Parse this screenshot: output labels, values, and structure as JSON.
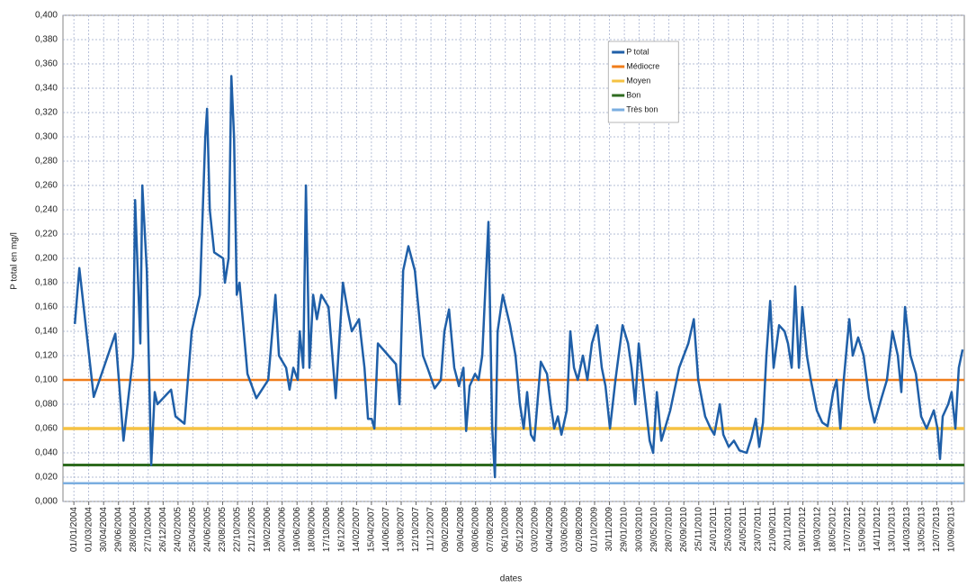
{
  "chart_data": {
    "type": "line",
    "x_label": "dates",
    "y_label": "P total en mg/l",
    "xlim": [
      "18/11/2003",
      "31/10/2013"
    ],
    "xticks": [
      "01/01/2004",
      "01/03/2004",
      "30/04/2004",
      "29/06/2004",
      "28/08/2004",
      "27/10/2004",
      "26/12/2004",
      "24/02/2005",
      "25/04/2005",
      "24/06/2005",
      "23/08/2005",
      "22/10/2005",
      "21/12/2005",
      "19/02/2006",
      "20/04/2006",
      "19/06/2006",
      "18/08/2006",
      "17/10/2006",
      "16/12/2006",
      "14/02/2007",
      "15/04/2007",
      "14/06/2007",
      "13/08/2007",
      "12/10/2007",
      "11/12/2007",
      "09/02/2008",
      "09/04/2008",
      "08/06/2008",
      "07/08/2008",
      "06/10/2008",
      "05/12/2008",
      "03/02/2009",
      "04/04/2009",
      "03/06/2009",
      "02/08/2009",
      "01/10/2009",
      "30/11/2009",
      "29/01/2010",
      "30/03/2010",
      "29/05/2010",
      "28/07/2010",
      "26/09/2010",
      "25/11/2010",
      "24/01/2011",
      "25/03/2011",
      "24/05/2011",
      "23/07/2011",
      "21/09/2011",
      "20/11/2011",
      "19/01/2012",
      "19/03/2012",
      "18/05/2012",
      "17/07/2012",
      "15/09/2012",
      "14/11/2012",
      "13/01/2013",
      "14/03/2013",
      "13/05/2013",
      "12/07/2013",
      "10/09/2013"
    ],
    "ylim": [
      0,
      0.4
    ],
    "yticks": [
      {
        "value": 0,
        "label": "0,000"
      },
      {
        "value": 0.02,
        "label": "0,020"
      },
      {
        "value": 0.04,
        "label": "0,040"
      },
      {
        "value": 0.06,
        "label": "0,060"
      },
      {
        "value": 0.08,
        "label": "0,080"
      },
      {
        "value": 0.1,
        "label": "0,100"
      },
      {
        "value": 0.12,
        "label": "0,120"
      },
      {
        "value": 0.14,
        "label": "0,140"
      },
      {
        "value": 0.16,
        "label": "0,160"
      },
      {
        "value": 0.18,
        "label": "0,180"
      },
      {
        "value": 0.2,
        "label": "0,200"
      },
      {
        "value": 0.22,
        "label": "0,220"
      },
      {
        "value": 0.24,
        "label": "0,240"
      },
      {
        "value": 0.26,
        "label": "0,260"
      },
      {
        "value": 0.28,
        "label": "0,280"
      },
      {
        "value": 0.3,
        "label": "0,300"
      },
      {
        "value": 0.32,
        "label": "0,320"
      },
      {
        "value": 0.34,
        "label": "0,340"
      },
      {
        "value": 0.36,
        "label": "0,360"
      },
      {
        "value": 0.38,
        "label": "0,380"
      },
      {
        "value": 0.4,
        "label": "0,400"
      }
    ],
    "grid": true,
    "legend": "upper right",
    "series": [
      {
        "name": "P total",
        "color": "#1f5fa8",
        "width": 2.5,
        "x": [
          "05/01/2004",
          "23/01/2004",
          "21/03/2004",
          "16/06/2004",
          "19/07/2004",
          "27/08/2004",
          "04/09/2004",
          "25/09/2004",
          "03/10/2004",
          "21/10/2004",
          "08/11/2004",
          "22/11/2004",
          "03/12/2004",
          "27/01/2005",
          "14/02/2005",
          "22/03/2005",
          "20/04/2005",
          "23/05/2005",
          "14/06/2005",
          "21/06/2005",
          "02/07/2005",
          "20/07/2005",
          "25/08/2005",
          "01/09/2005",
          "16/09/2005",
          "27/09/2005",
          "08/10/2005",
          "19/10/2005",
          "30/10/2005",
          "01/12/2005",
          "06/01/2006",
          "23/02/2006",
          "24/03/2006",
          "07/04/2006",
          "06/05/2006",
          "20/05/2006",
          "04/06/2006",
          "22/06/2006",
          "30/06/2006",
          "14/07/2006",
          "25/07/2006",
          "08/08/2006",
          "23/08/2006",
          "07/09/2006",
          "25/09/2006",
          "24/10/2006",
          "22/11/2006",
          "21/12/2006",
          "11/01/2007",
          "26/01/2007",
          "24/02/2007",
          "18/03/2007",
          "01/04/2007",
          "16/04/2007",
          "27/04/2007",
          "11/05/2007",
          "23/07/2007",
          "06/08/2007",
          "21/08/2007",
          "11/09/2007",
          "07/10/2007",
          "09/11/2007",
          "27/11/2007",
          "26/12/2007",
          "20/01/2008",
          "03/02/2008",
          "22/02/2008",
          "14/03/2008",
          "02/04/2008",
          "20/04/2008",
          "01/05/2008",
          "15/05/2008",
          "06/06/2008",
          "20/06/2008",
          "05/07/2008",
          "30/07/2008",
          "14/08/2008",
          "25/08/2008",
          "05/09/2008",
          "26/09/2008",
          "25/10/2008",
          "16/11/2008",
          "04/12/2008",
          "19/12/2008",
          "02/01/2009",
          "17/01/2009",
          "31/01/2009",
          "26/02/2009",
          "23/03/2009",
          "07/04/2009",
          "21/04/2009",
          "06/05/2009",
          "20/05/2009",
          "11/06/2009",
          "25/06/2009",
          "10/07/2009",
          "25/07/2009",
          "15/08/2009",
          "02/09/2009",
          "20/09/2009",
          "12/10/2009",
          "30/10/2009",
          "14/11/2009",
          "02/12/2009",
          "24/12/2009",
          "22/01/2010",
          "13/02/2010",
          "27/02/2010",
          "14/03/2010",
          "28/03/2010",
          "19/04/2010",
          "11/05/2010",
          "25/05/2010",
          "09/06/2010",
          "27/06/2010",
          "02/08/2010",
          "07/09/2010",
          "14/10/2010",
          "05/11/2010",
          "23/11/2010",
          "21/12/2010",
          "12/01/2011",
          "27/01/2011",
          "18/02/2011",
          "04/03/2011",
          "26/03/2011",
          "16/04/2011",
          "08/05/2011",
          "06/06/2011",
          "25/06/2011",
          "13/07/2011",
          "27/07/2011",
          "11/08/2011",
          "25/08/2011",
          "09/09/2011",
          "23/09/2011",
          "15/10/2011",
          "06/11/2011",
          "20/11/2011",
          "05/12/2011",
          "19/12/2011",
          "03/01/2012",
          "17/01/2012",
          "04/02/2012",
          "22/02/2012",
          "15/03/2012",
          "06/04/2012",
          "28/04/2012",
          "20/05/2012",
          "03/06/2012",
          "18/06/2012",
          "02/07/2012",
          "24/07/2012",
          "07/08/2012",
          "29/08/2012",
          "20/09/2012",
          "12/10/2012",
          "03/11/2012",
          "01/12/2012",
          "23/12/2012",
          "14/01/2013",
          "05/02/2013",
          "19/02/2013",
          "06/03/2013",
          "28/03/2013",
          "19/04/2013",
          "10/05/2013",
          "01/06/2013",
          "30/06/2013",
          "15/07/2013",
          "25/07/2013",
          "05/08/2013",
          "27/08/2013",
          "10/09/2013",
          "25/09/2013",
          "09/10/2013",
          "24/10/2013"
        ],
        "values": [
          0.146,
          0.192,
          0.086,
          0.138,
          0.05,
          0.12,
          0.248,
          0.13,
          0.26,
          0.19,
          0.03,
          0.09,
          0.08,
          0.092,
          0.07,
          0.064,
          0.14,
          0.17,
          0.3,
          0.323,
          0.24,
          0.205,
          0.2,
          0.18,
          0.2,
          0.35,
          0.3,
          0.17,
          0.18,
          0.105,
          0.085,
          0.1,
          0.17,
          0.12,
          0.11,
          0.092,
          0.11,
          0.1,
          0.14,
          0.11,
          0.26,
          0.11,
          0.17,
          0.15,
          0.17,
          0.16,
          0.085,
          0.18,
          0.155,
          0.14,
          0.15,
          0.11,
          0.068,
          0.068,
          0.06,
          0.13,
          0.113,
          0.08,
          0.19,
          0.21,
          0.19,
          0.12,
          0.11,
          0.093,
          0.1,
          0.14,
          0.158,
          0.11,
          0.095,
          0.11,
          0.058,
          0.095,
          0.105,
          0.1,
          0.12,
          0.23,
          0.06,
          0.02,
          0.14,
          0.17,
          0.145,
          0.12,
          0.08,
          0.06,
          0.09,
          0.055,
          0.05,
          0.115,
          0.105,
          0.08,
          0.06,
          0.07,
          0.055,
          0.075,
          0.14,
          0.11,
          0.1,
          0.12,
          0.1,
          0.13,
          0.145,
          0.11,
          0.095,
          0.06,
          0.1,
          0.145,
          0.13,
          0.11,
          0.08,
          0.13,
          0.09,
          0.05,
          0.04,
          0.09,
          0.05,
          0.075,
          0.11,
          0.13,
          0.15,
          0.1,
          0.07,
          0.06,
          0.055,
          0.08,
          0.055,
          0.045,
          0.05,
          0.042,
          0.04,
          0.052,
          0.068,
          0.045,
          0.065,
          0.12,
          0.165,
          0.11,
          0.145,
          0.14,
          0.13,
          0.11,
          0.177,
          0.11,
          0.16,
          0.12,
          0.098,
          0.075,
          0.065,
          0.062,
          0.09,
          0.1,
          0.06,
          0.1,
          0.15,
          0.12,
          0.135,
          0.12,
          0.085,
          0.065,
          0.085,
          0.1,
          0.14,
          0.12,
          0.09,
          0.16,
          0.12,
          0.105,
          0.07,
          0.06,
          0.075,
          0.06,
          0.035,
          0.07,
          0.08,
          0.09,
          0.06,
          0.11,
          0.125
        ]
      },
      {
        "name": "Médiocre",
        "color": "#f07d1a",
        "width": 2.5,
        "x": [
          "18/11/2003",
          "31/10/2013"
        ],
        "values": [
          0.1,
          0.1
        ]
      },
      {
        "name": "Moyen",
        "color": "#f5c242",
        "width": 3.5,
        "x": [
          "18/11/2003",
          "31/10/2013"
        ],
        "values": [
          0.06,
          0.06
        ]
      },
      {
        "name": "Bon",
        "color": "#2e6b1f",
        "width": 3,
        "x": [
          "18/11/2003",
          "31/10/2013"
        ],
        "values": [
          0.03,
          0.03
        ]
      },
      {
        "name": "Très bon",
        "color": "#7aaee0",
        "width": 2.5,
        "x": [
          "18/11/2003",
          "31/10/2013"
        ],
        "values": [
          0.015,
          0.015
        ]
      }
    ]
  }
}
